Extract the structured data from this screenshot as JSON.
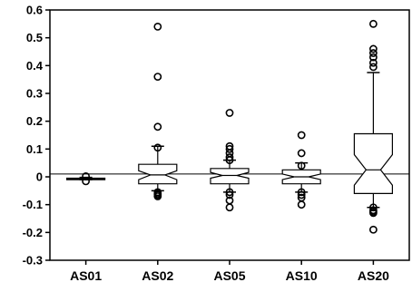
{
  "chart_data": {
    "type": "box",
    "notched": true,
    "title": "",
    "xlabel": "",
    "ylabel": "",
    "ylim": [
      -0.3,
      0.6
    ],
    "yticks": [
      "0.6",
      "0.5",
      "0.4",
      "0.3",
      "0.2",
      "0.1",
      "0",
      "-0.1",
      "-0.2",
      "-0.3"
    ],
    "reference_line": 0.01,
    "categories": [
      "AS01",
      "AS02",
      "AS05",
      "AS10",
      "AS20"
    ],
    "boxes": [
      {
        "category": "AS01",
        "whisker_low": -0.01,
        "q1": -0.01,
        "median": -0.007,
        "q3": -0.005,
        "whisker_high": -0.002,
        "notch": [
          -0.008,
          -0.006
        ],
        "outliers": [
          -0.016,
          0.002
        ]
      },
      {
        "category": "AS02",
        "whisker_low": -0.05,
        "q1": -0.025,
        "median": 0.007,
        "q3": 0.045,
        "whisker_high": 0.11,
        "notch": [
          -0.01,
          0.022
        ],
        "outliers": [
          0.54,
          0.36,
          0.18,
          0.105,
          -0.055,
          -0.06,
          -0.065,
          -0.07
        ]
      },
      {
        "category": "AS05",
        "whisker_low": -0.055,
        "q1": -0.025,
        "median": 0.005,
        "q3": 0.03,
        "whisker_high": 0.06,
        "notch": [
          -0.005,
          0.016
        ],
        "outliers": [
          0.23,
          0.11,
          0.1,
          0.085,
          0.07,
          0.06,
          -0.055,
          -0.065,
          -0.085,
          -0.11
        ]
      },
      {
        "category": "AS10",
        "whisker_low": -0.055,
        "q1": -0.025,
        "median": 0.0,
        "q3": 0.025,
        "whisker_high": 0.05,
        "notch": [
          -0.01,
          0.01
        ],
        "outliers": [
          0.15,
          0.085,
          0.04,
          -0.055,
          -0.065,
          -0.075,
          -0.1
        ]
      },
      {
        "category": "AS20",
        "whisker_low": -0.11,
        "q1": -0.06,
        "median": 0.025,
        "q3": 0.155,
        "whisker_high": 0.375,
        "notch": [
          -0.03,
          0.08
        ],
        "outliers": [
          0.55,
          0.46,
          0.445,
          0.43,
          0.41,
          0.395,
          -0.11,
          -0.12,
          -0.125,
          -0.13,
          -0.19
        ]
      }
    ]
  }
}
